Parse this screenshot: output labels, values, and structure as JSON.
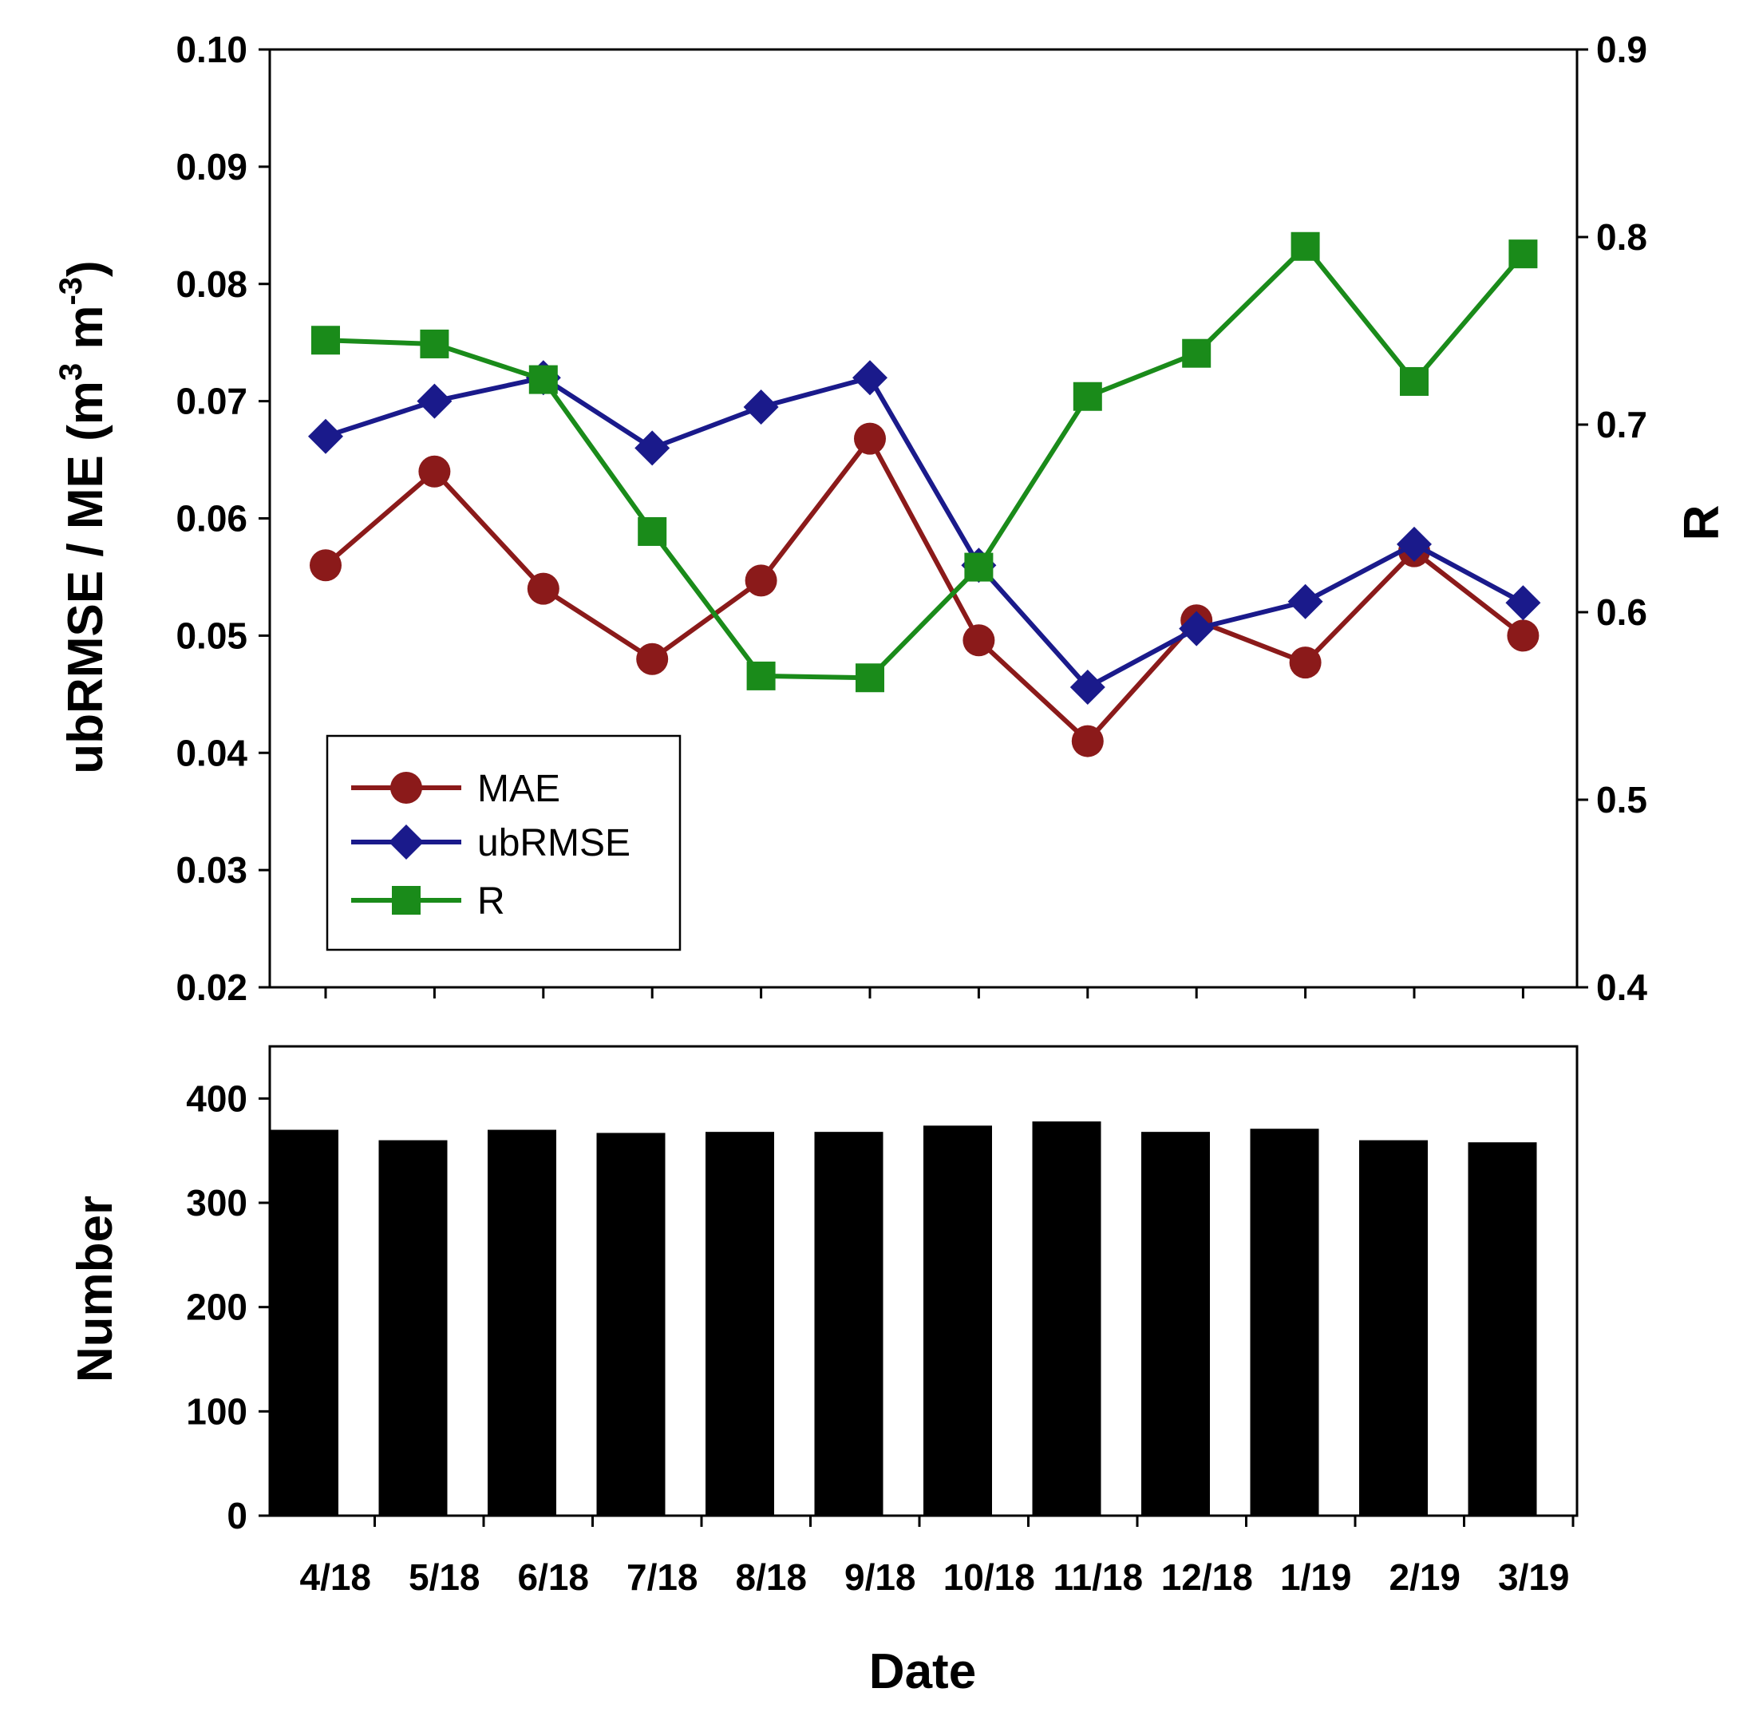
{
  "chart_data": [
    {
      "type": "line",
      "categories": [
        "4/18",
        "5/18",
        "6/18",
        "7/18",
        "8/18",
        "9/18",
        "10/18",
        "11/18",
        "12/18",
        "1/19",
        "2/19",
        "3/19"
      ],
      "ylabel": "ubRMSE / ME (m3 m-3)",
      "ylabel_parts": {
        "main": "ubRMSE / ME (m",
        "sup1": "3",
        "mid": " m",
        "sup2": "-3",
        "end": ")"
      },
      "ylim": [
        0.02,
        0.1
      ],
      "yticks": [
        "0.02",
        "0.03",
        "0.04",
        "0.05",
        "0.06",
        "0.07",
        "0.08",
        "0.09",
        "0.10"
      ],
      "y2label": "R",
      "y2lim": [
        0.4,
        0.9
      ],
      "y2ticks": [
        "0.4",
        "0.5",
        "0.6",
        "0.7",
        "0.8",
        "0.9"
      ],
      "legend_position": "lower-left",
      "series": [
        {
          "name": "MAE",
          "axis": "left",
          "marker": "circle",
          "color": "#8b1a1a",
          "values": [
            0.056,
            0.064,
            0.054,
            0.048,
            0.0547,
            0.0668,
            0.0496,
            0.041,
            0.0513,
            0.0477,
            0.0572,
            0.05
          ]
        },
        {
          "name": "ubRMSE",
          "axis": "left",
          "marker": "diamond",
          "color": "#1a1a8b",
          "values": [
            0.067,
            0.07,
            0.072,
            0.066,
            0.0695,
            0.072,
            0.056,
            0.0456,
            0.0506,
            0.0529,
            0.0578,
            0.0528
          ]
        },
        {
          "name": "R",
          "axis": "right",
          "marker": "square",
          "color": "#1a8b1a",
          "values": [
            0.745,
            0.743,
            0.724,
            0.643,
            0.566,
            0.565,
            0.624,
            0.715,
            0.738,
            0.795,
            0.723,
            0.791
          ]
        }
      ]
    },
    {
      "type": "bar",
      "categories": [
        "4/18",
        "5/18",
        "6/18",
        "7/18",
        "8/18",
        "9/18",
        "10/18",
        "11/18",
        "12/18",
        "1/19",
        "2/19",
        "3/19"
      ],
      "values": [
        370,
        360,
        370,
        367,
        368,
        368,
        374,
        378,
        368,
        371,
        360,
        358
      ],
      "ylabel": "Number",
      "xlabel": "Date",
      "ylim": [
        0,
        450
      ],
      "yticks": [
        "0",
        "100",
        "200",
        "300",
        "400"
      ],
      "color": "#000000"
    }
  ]
}
